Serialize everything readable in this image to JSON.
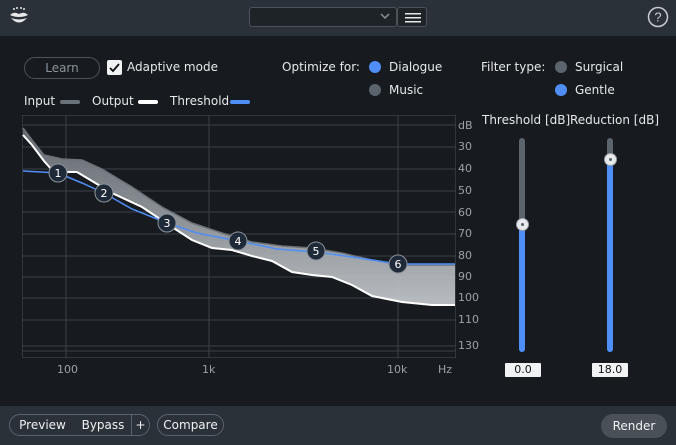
{
  "header": {
    "preset_value": "",
    "logo_icon": "rx-lips-icon",
    "menu_icon": "hamburger-icon",
    "help_icon": "question-circle-icon"
  },
  "controls": {
    "learn_label": "Learn",
    "adaptive_mode_label": "Adaptive mode",
    "adaptive_mode_checked": true,
    "optimize_for_label": "Optimize for:",
    "optimize_options": [
      "Dialogue",
      "Music"
    ],
    "optimize_selected": "Dialogue",
    "filter_type_label": "Filter type:",
    "filter_options": [
      "Surgical",
      "Gentle"
    ],
    "filter_selected": "Gentle"
  },
  "legend": {
    "input_label": "Input",
    "output_label": "Output",
    "threshold_label": "Threshold",
    "colors": {
      "input": "#6b7178",
      "output": "#ffffff",
      "threshold": "#4f8ef7"
    }
  },
  "graph": {
    "db_unit": "dB",
    "db_ticks": [
      "30",
      "40",
      "50",
      "60",
      "70",
      "80",
      "90",
      "100",
      "110",
      "130"
    ],
    "freq_ticks": [
      "100",
      "1k",
      "10k"
    ],
    "freq_unit": "Hz",
    "nodes": [
      "1",
      "2",
      "3",
      "4",
      "5",
      "6"
    ]
  },
  "sliders": {
    "threshold_label": "Threshold [dB]",
    "threshold_value": "0.0",
    "threshold_level": 0.6,
    "reduction_label": "Reduction [dB]",
    "reduction_value": "18.0",
    "reduction_level": 0.9
  },
  "footer": {
    "preview_label": "Preview",
    "bypass_label": "Bypass",
    "plus_label": "+",
    "compare_label": "Compare",
    "render_label": "Render"
  }
}
